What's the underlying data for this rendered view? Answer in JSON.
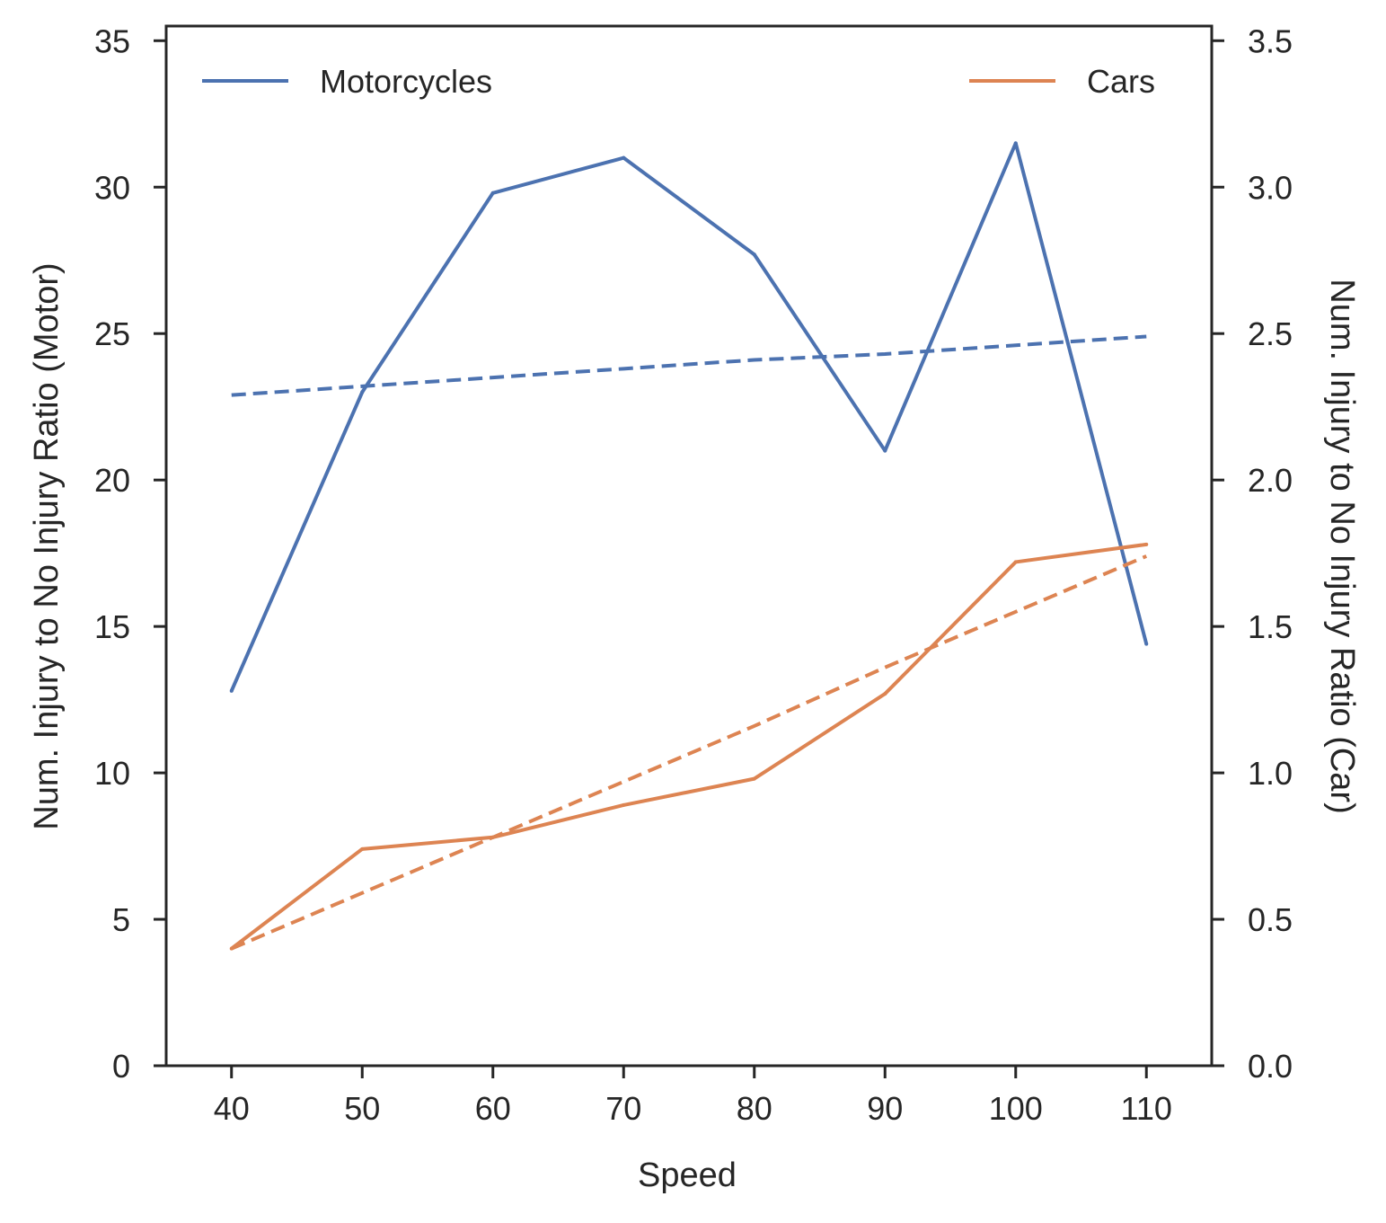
{
  "chart_data": {
    "type": "line",
    "title": "",
    "xlabel": "Speed",
    "ylabel_left": "Num. Injury to No Injury Ratio (Motor)",
    "ylabel_right": "Num. Injury to No Injury Ratio (Car)",
    "x": [
      40,
      50,
      60,
      70,
      80,
      90,
      100,
      110
    ],
    "xlim": [
      35,
      115
    ],
    "ylim_left": [
      0,
      35.5
    ],
    "ylim_right": [
      0,
      3.55
    ],
    "x_ticks": [
      "40",
      "50",
      "60",
      "70",
      "80",
      "90",
      "100",
      "110"
    ],
    "y_left_ticks": [
      0,
      5,
      10,
      15,
      20,
      25,
      30,
      35
    ],
    "y_left_tick_labels": [
      "0",
      "5",
      "10",
      "15",
      "20",
      "25",
      "30",
      "35"
    ],
    "y_right_ticks": [
      0,
      0.5,
      1.0,
      1.5,
      2.0,
      2.5,
      3.0,
      3.5
    ],
    "y_right_tick_labels": [
      "0.0",
      "0.5",
      "1.0",
      "1.5",
      "2.0",
      "2.5",
      "3.0",
      "3.5"
    ],
    "grid": false,
    "series": [
      {
        "name": "Motorcycles",
        "axis": "left",
        "color": "#4c72b0",
        "values": [
          12.8,
          23.0,
          29.8,
          31.0,
          27.7,
          21.0,
          31.5,
          14.4
        ],
        "trend": [
          22.9,
          23.2,
          23.5,
          23.8,
          24.1,
          24.3,
          24.6,
          24.9
        ],
        "legend_position": "top-left"
      },
      {
        "name": "Cars",
        "axis": "right",
        "color": "#dd8452",
        "values": [
          0.4,
          0.74,
          0.78,
          0.89,
          0.98,
          1.27,
          1.72,
          1.78
        ],
        "trend": [
          0.4,
          0.59,
          0.78,
          0.97,
          1.16,
          1.36,
          1.55,
          1.74
        ],
        "legend_position": "top-right"
      }
    ]
  }
}
